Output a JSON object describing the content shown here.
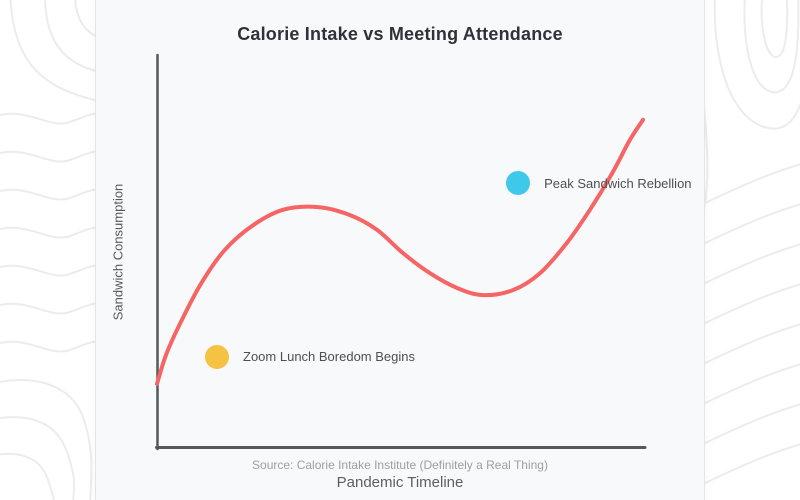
{
  "chart_data": {
    "type": "line",
    "title": "Calorie Intake vs Meeting Attendance",
    "xlabel": "Pandemic Timeline",
    "ylabel": "Sandwich Consumption",
    "source_note": "Source: Calorie Intake Institute (Definitely a Real Thing)",
    "x_range": [
      0,
      100
    ],
    "y_range": [
      0,
      100
    ],
    "grid": false,
    "axis_ticks": false,
    "legend": false,
    "axis_color": "#55595d",
    "series": [
      {
        "name": "sandwich-consumption-curve",
        "color": "#f56565",
        "stroke_width": 4,
        "points": [
          [
            0,
            16.3
          ],
          [
            2,
            24.2
          ],
          [
            5.3,
            33.1
          ],
          [
            9.2,
            42.2
          ],
          [
            13.9,
            50.4
          ],
          [
            19.7,
            56.7
          ],
          [
            25.8,
            60.6
          ],
          [
            33,
            61.3
          ],
          [
            39.5,
            59.3
          ],
          [
            45.1,
            55.5
          ],
          [
            50.4,
            49.6
          ],
          [
            55.9,
            44.5
          ],
          [
            61.5,
            40.7
          ],
          [
            66.8,
            38.9
          ],
          [
            73,
            40.2
          ],
          [
            78.5,
            44.5
          ],
          [
            84,
            52.2
          ],
          [
            88.7,
            60.6
          ],
          [
            93.4,
            70.2
          ],
          [
            96.9,
            78.4
          ],
          [
            99.6,
            83.5
          ]
        ]
      }
    ],
    "annotations": [
      {
        "label": "Zoom Lunch Boredom Begins",
        "x": 12.3,
        "y": 23.2,
        "color": "#f6c244"
      },
      {
        "label": "Peak Sandwich Rebellion",
        "x": 74.0,
        "y": 67.4,
        "color": "#3ec9ea"
      }
    ]
  }
}
